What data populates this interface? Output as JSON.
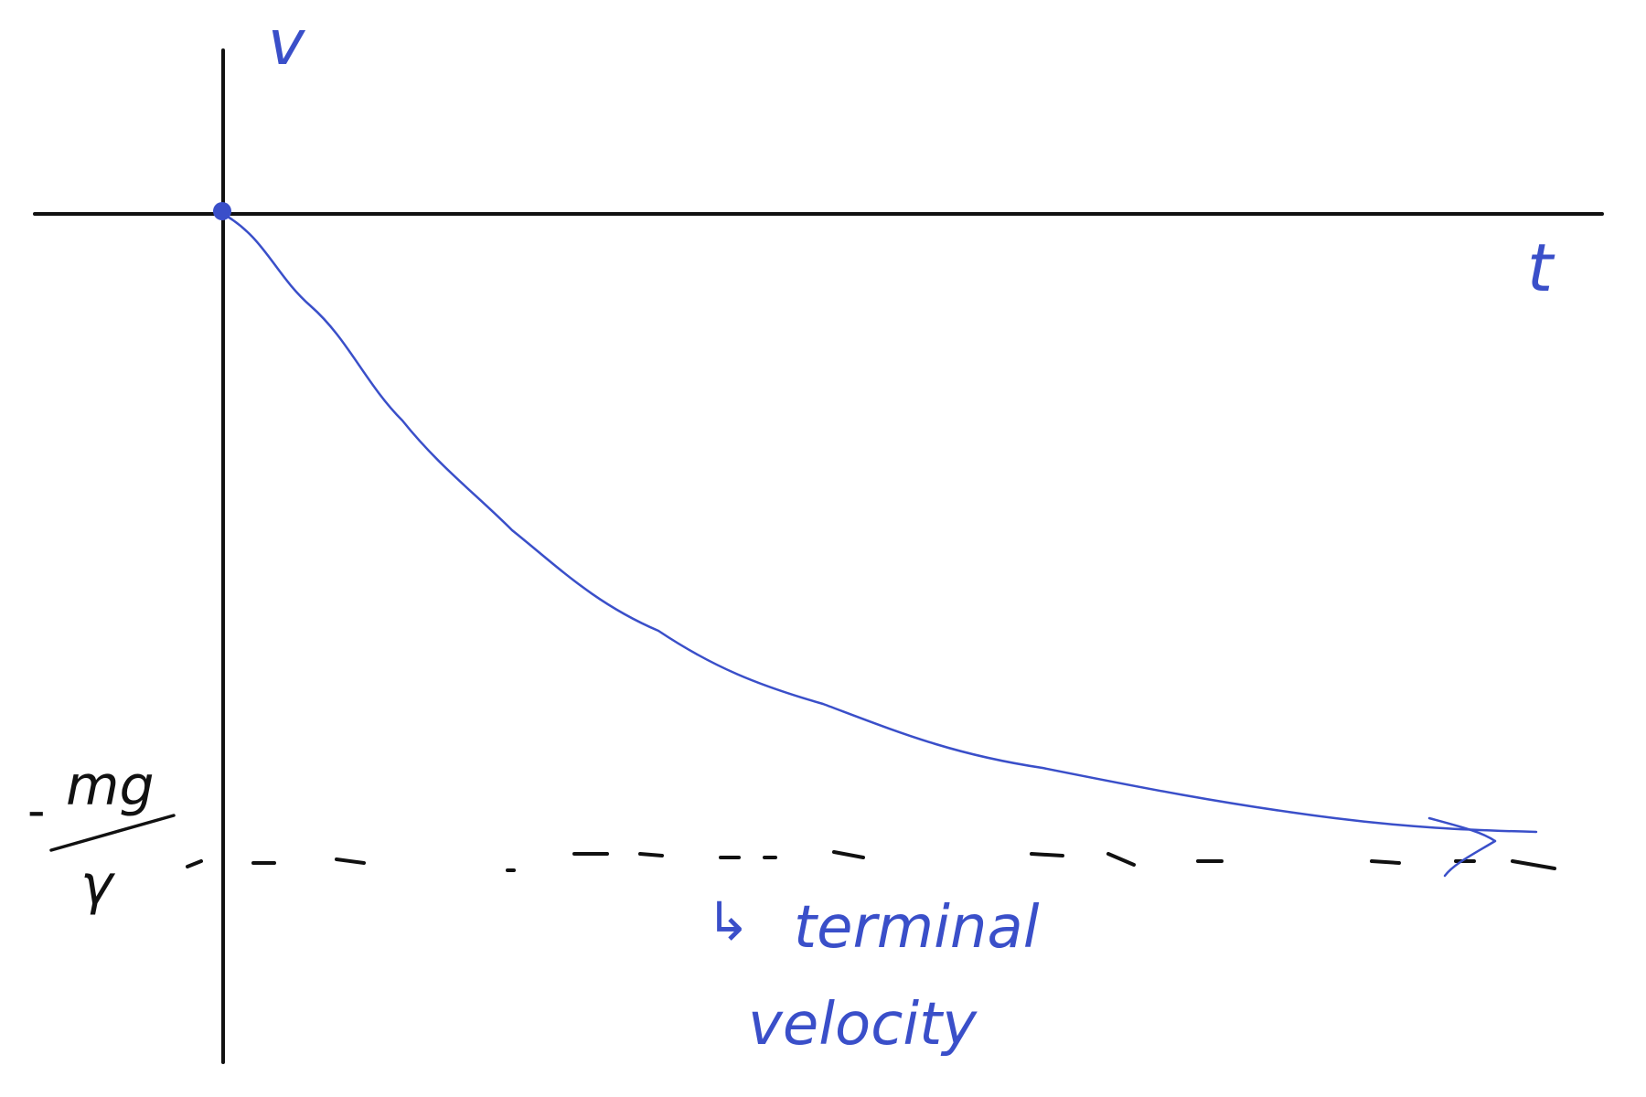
{
  "colors": {
    "background": "#ffffff",
    "axis": "#111111",
    "curve": "#3a4fc9",
    "asymptote": "#111111",
    "label_blue": "#3a4fc9",
    "label_black": "#111111"
  },
  "labels": {
    "v_axis": "v",
    "t_axis": "t",
    "asymptote_value": {
      "sign": "-",
      "numerator": "mg",
      "denominator": "γ"
    },
    "annotation_arrow": "↳",
    "annotation_line1": "terminal",
    "annotation_line2": "velocity"
  }
}
